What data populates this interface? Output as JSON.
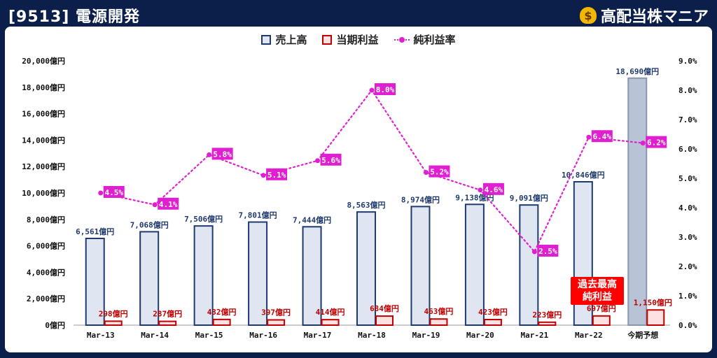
{
  "header": {
    "title": "[9513] 電源開発",
    "brand": "高配当株マニア",
    "brand_icon": "money-bag-icon"
  },
  "annotation": {
    "line1": "過去最高",
    "line2": "純利益"
  },
  "colors": {
    "revenue_fill": "#dfe6f2",
    "revenue_stroke": "#1f3a6e",
    "forecast_fill": "#b8c3d6",
    "profit_fill": "#fde0e0",
    "profit_stroke": "#c00000",
    "rate": "#e020d0"
  },
  "chart_data": {
    "type": "bar",
    "categories": [
      "Mar-13",
      "Mar-14",
      "Mar-15",
      "Mar-16",
      "Mar-17",
      "Mar-18",
      "Mar-19",
      "Mar-20",
      "Mar-21",
      "Mar-22",
      "今期予想"
    ],
    "series": [
      {
        "name": "売上高",
        "type": "bar",
        "axis": "left",
        "values": [
          6561,
          7068,
          7506,
          7801,
          7444,
          8563,
          8974,
          9138,
          9091,
          10846,
          18690
        ],
        "labels": [
          "6,561億円",
          "7,068億円",
          "7,506億円",
          "7,801億円",
          "7,444億円",
          "8,563億円",
          "8,974億円",
          "9,138億円",
          "9,091億円",
          "10,846億円",
          "18,690億円"
        ]
      },
      {
        "name": "当期利益",
        "type": "bar",
        "axis": "left",
        "values": [
          298,
          287,
          432,
          397,
          414,
          684,
          463,
          423,
          223,
          697,
          1150
        ],
        "labels": [
          "298億円",
          "287億円",
          "432億円",
          "397億円",
          "414億円",
          "684億円",
          "463億円",
          "423億円",
          "223億円",
          "697億円",
          "1,150億円"
        ]
      },
      {
        "name": "純利益率",
        "type": "line",
        "axis": "right",
        "values": [
          4.5,
          4.1,
          5.8,
          5.1,
          5.6,
          8.0,
          5.2,
          4.6,
          2.5,
          6.4,
          6.2
        ],
        "labels": [
          "4.5%",
          "4.1%",
          "5.8%",
          "5.1%",
          "5.6%",
          "8.0%",
          "5.2%",
          "4.6%",
          "2.5%",
          "6.4%",
          "6.2%"
        ]
      }
    ],
    "y_left": {
      "ylim": [
        0,
        20000
      ],
      "ticks": [
        "0億円",
        "2,000億円",
        "4,000億円",
        "6,000億円",
        "8,000億円",
        "10,000億円",
        "12,000億円",
        "14,000億円",
        "16,000億円",
        "18,000億円",
        "20,000億円"
      ]
    },
    "y_right": {
      "ylim": [
        0,
        9
      ],
      "ticks": [
        "0.0%",
        "1.0%",
        "2.0%",
        "3.0%",
        "4.0%",
        "5.0%",
        "6.0%",
        "7.0%",
        "8.0%",
        "9.0%"
      ]
    },
    "legend_position": "top-center",
    "grid": false
  }
}
